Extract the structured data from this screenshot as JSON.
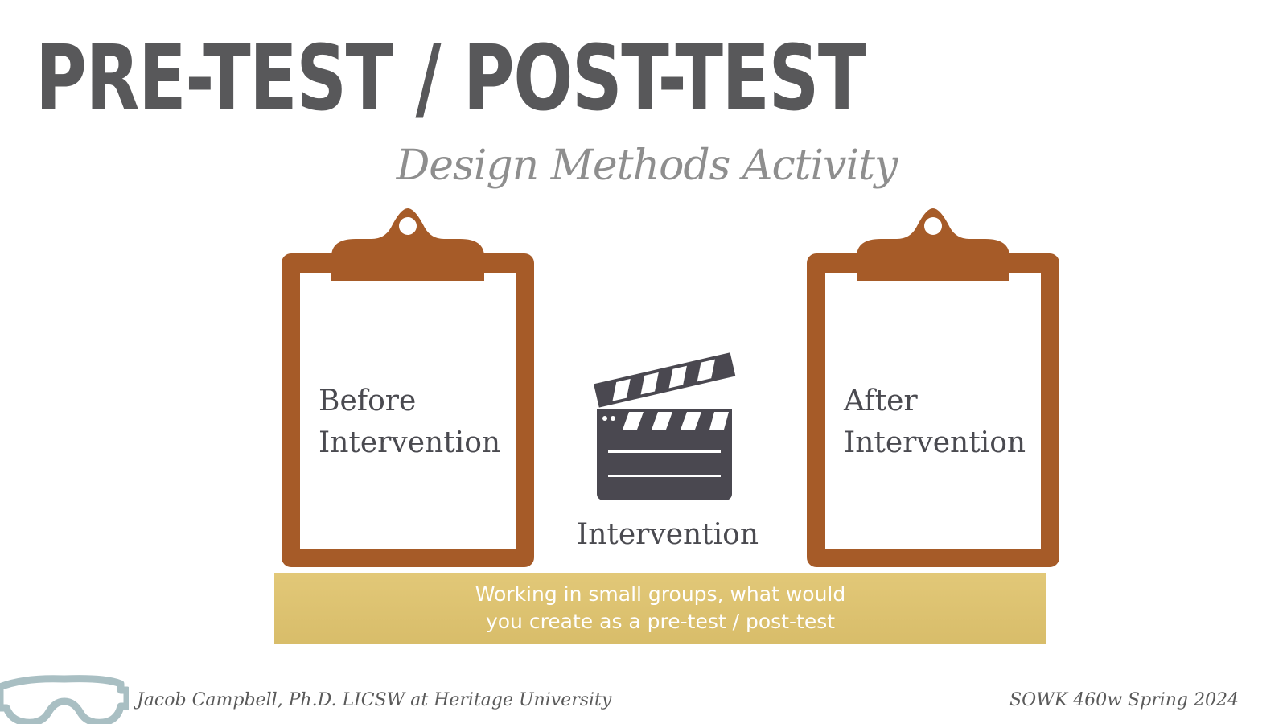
{
  "title": "PRE-TEST / POST-TEST",
  "subtitle": "Design Methods Activity",
  "clipboards": [
    {
      "line1": "Before",
      "line2": "Intervention"
    },
    {
      "line1": "After",
      "line2": "Intervention"
    }
  ],
  "intervention_label": "Intervention",
  "banner": {
    "line1": "Working in small groups, what would",
    "line2": "you create as a pre-test / post-test"
  },
  "footer": {
    "left": "Jacob Campbell, Ph.D. LICSW at Heritage University",
    "right": "SOWK 460w Spring 2024"
  },
  "icons": {
    "clipboard": "clipboard-icon",
    "clapperboard": "clapperboard-icon",
    "goggles": "goggles-icon"
  },
  "colors": {
    "title": "#58585a",
    "subtitle": "#8e8e8e",
    "clipboard": "#a65b28",
    "clapper": "#4a4850",
    "banner": "#ddc272",
    "goggles": "#a9bfc3"
  }
}
